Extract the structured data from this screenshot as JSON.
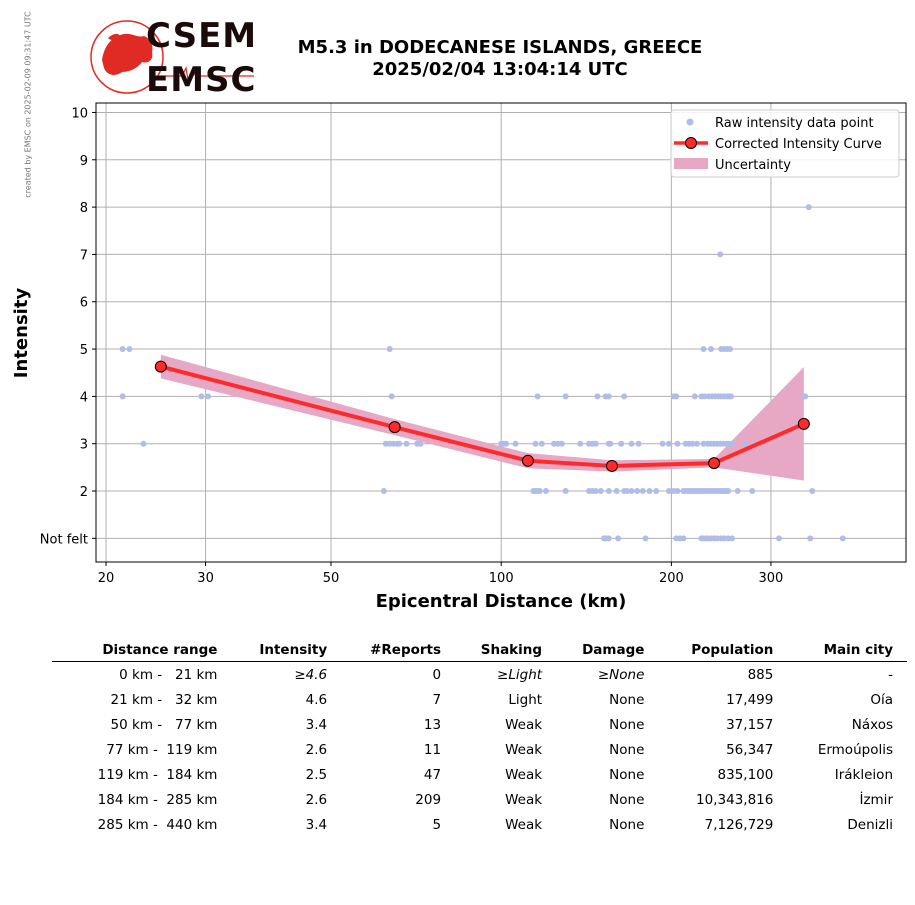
{
  "side_note": "created by EMSC on 2025-02-09 09:31:47 UTC",
  "logo": {
    "line1": "CSEM",
    "line2": "EMSC"
  },
  "title": {
    "line1": "M5.3 in DODECANESE ISLANDS, GREECE",
    "line2": "2025/02/04 13:04:14 UTC"
  },
  "colors": {
    "raw_points": "#b0bde8",
    "curve": "#ff2a2a",
    "curve_marker_edge": "#000000",
    "uncertainty": "#e6a8c4",
    "logo_red": "#e02a24"
  },
  "chart_data": {
    "type": "scatter",
    "title": "",
    "xlabel": "Epicentral Distance (km)",
    "ylabel": "Intensity",
    "x_scale": "log",
    "xlim": [
      19.2,
      520
    ],
    "ylim": [
      0.5,
      10.2
    ],
    "x_ticks": [
      20,
      30,
      50,
      100,
      200,
      300
    ],
    "y_ticks": [
      {
        "value": 1,
        "label": "Not felt"
      },
      {
        "value": 2,
        "label": "2"
      },
      {
        "value": 3,
        "label": "3"
      },
      {
        "value": 4,
        "label": "4"
      },
      {
        "value": 5,
        "label": "5"
      },
      {
        "value": 6,
        "label": "6"
      },
      {
        "value": 7,
        "label": "7"
      },
      {
        "value": 8,
        "label": "8"
      },
      {
        "value": 9,
        "label": "9"
      },
      {
        "value": 10,
        "label": "10"
      }
    ],
    "grid": true,
    "legend": {
      "position": "top-right",
      "entries": [
        "Raw intensity data point",
        "Corrected Intensity Curve",
        "Uncertainty"
      ]
    },
    "series": [
      {
        "name": "Raw intensity data point",
        "type": "scatter",
        "points": [
          [
            21.4,
            5
          ],
          [
            22,
            5
          ],
          [
            21.4,
            4
          ],
          [
            23.3,
            3
          ],
          [
            29.5,
            4
          ],
          [
            30.3,
            4
          ],
          [
            62,
            2
          ],
          [
            63.5,
            5
          ],
          [
            64,
            4
          ],
          [
            62.5,
            3
          ],
          [
            63.5,
            3
          ],
          [
            64.5,
            3
          ],
          [
            65.5,
            3
          ],
          [
            66,
            3
          ],
          [
            68,
            3
          ],
          [
            71,
            3
          ],
          [
            72,
            3
          ],
          [
            100,
            3
          ],
          [
            101,
            3
          ],
          [
            102,
            3
          ],
          [
            106,
            3
          ],
          [
            115,
            3
          ],
          [
            118,
            3
          ],
          [
            124,
            3
          ],
          [
            126,
            3
          ],
          [
            128,
            3
          ],
          [
            138,
            3
          ],
          [
            143,
            3
          ],
          [
            145,
            3
          ],
          [
            147,
            3
          ],
          [
            155,
            3
          ],
          [
            156,
            3
          ],
          [
            163,
            3
          ],
          [
            170,
            3
          ],
          [
            175,
            3
          ],
          [
            193,
            3
          ],
          [
            198,
            3
          ],
          [
            205,
            3
          ],
          [
            212,
            3
          ],
          [
            215,
            3
          ],
          [
            218,
            3
          ],
          [
            222,
            3
          ],
          [
            228,
            3
          ],
          [
            232,
            3
          ],
          [
            235,
            3
          ],
          [
            238,
            3
          ],
          [
            241,
            3
          ],
          [
            244,
            3
          ],
          [
            247,
            3
          ],
          [
            250,
            3
          ],
          [
            253,
            3
          ],
          [
            256,
            3
          ],
          [
            270,
            3
          ],
          [
            280,
            3
          ],
          [
            114,
            2
          ],
          [
            115,
            2
          ],
          [
            116,
            2
          ],
          [
            117,
            2
          ],
          [
            120,
            2
          ],
          [
            130,
            2
          ],
          [
            143,
            2
          ],
          [
            145,
            2
          ],
          [
            147,
            2
          ],
          [
            150,
            2
          ],
          [
            155,
            2
          ],
          [
            160,
            2
          ],
          [
            165,
            2
          ],
          [
            167,
            2
          ],
          [
            170,
            2
          ],
          [
            174,
            2
          ],
          [
            178,
            2
          ],
          [
            183,
            2
          ],
          [
            188,
            2
          ],
          [
            198,
            2
          ],
          [
            202,
            2
          ],
          [
            205,
            2
          ],
          [
            210,
            2
          ],
          [
            212,
            2
          ],
          [
            214,
            2
          ],
          [
            216,
            2
          ],
          [
            218,
            2
          ],
          [
            220,
            2
          ],
          [
            222,
            2
          ],
          [
            224,
            2
          ],
          [
            226,
            2
          ],
          [
            228,
            2
          ],
          [
            230,
            2
          ],
          [
            232,
            2
          ],
          [
            234,
            2
          ],
          [
            236,
            2
          ],
          [
            238,
            2
          ],
          [
            240,
            2
          ],
          [
            242,
            2
          ],
          [
            244,
            2
          ],
          [
            246,
            2
          ],
          [
            248,
            2
          ],
          [
            250,
            2
          ],
          [
            252,
            2
          ],
          [
            262,
            2
          ],
          [
            278,
            2
          ],
          [
            355,
            2
          ],
          [
            116,
            4
          ],
          [
            130,
            4
          ],
          [
            148,
            4
          ],
          [
            153,
            4
          ],
          [
            155,
            4
          ],
          [
            165,
            4
          ],
          [
            202,
            4
          ],
          [
            204,
            4
          ],
          [
            220,
            4
          ],
          [
            226,
            4
          ],
          [
            229,
            4
          ],
          [
            233,
            4
          ],
          [
            236,
            4
          ],
          [
            239,
            4
          ],
          [
            242,
            4
          ],
          [
            245,
            4
          ],
          [
            248,
            4
          ],
          [
            251,
            4
          ],
          [
            253,
            4
          ],
          [
            255,
            4
          ],
          [
            343,
            4
          ],
          [
            345,
            4
          ],
          [
            228,
            5
          ],
          [
            235,
            5
          ],
          [
            245,
            5
          ],
          [
            248,
            5
          ],
          [
            251,
            5
          ],
          [
            254,
            5
          ],
          [
            244,
            7
          ],
          [
            350,
            8
          ],
          [
            152,
            1
          ],
          [
            153,
            1
          ],
          [
            155,
            1
          ],
          [
            161,
            1
          ],
          [
            180,
            1
          ],
          [
            204,
            1
          ],
          [
            207,
            1
          ],
          [
            210,
            1
          ],
          [
            226,
            1
          ],
          [
            228,
            1
          ],
          [
            230,
            1
          ],
          [
            232,
            1
          ],
          [
            235,
            1
          ],
          [
            238,
            1
          ],
          [
            241,
            1
          ],
          [
            245,
            1
          ],
          [
            248,
            1
          ],
          [
            252,
            1
          ],
          [
            256,
            1
          ],
          [
            310,
            1
          ],
          [
            352,
            1
          ],
          [
            402,
            1
          ]
        ]
      },
      {
        "name": "Corrected Intensity Curve",
        "type": "line",
        "points": [
          [
            25,
            4.63
          ],
          [
            64.8,
            3.35
          ],
          [
            111.5,
            2.64
          ],
          [
            157,
            2.53
          ],
          [
            238,
            2.59
          ],
          [
            343,
            3.42
          ]
        ]
      },
      {
        "name": "Uncertainty",
        "type": "area",
        "upper": [
          [
            25,
            4.88
          ],
          [
            64.8,
            3.52
          ],
          [
            111.5,
            2.8
          ],
          [
            157,
            2.65
          ],
          [
            238,
            2.68
          ],
          [
            343,
            4.62
          ]
        ],
        "lower": [
          [
            25,
            4.38
          ],
          [
            64.8,
            3.18
          ],
          [
            111.5,
            2.48
          ],
          [
            157,
            2.41
          ],
          [
            238,
            2.5
          ],
          [
            343,
            2.22
          ]
        ]
      }
    ]
  },
  "table": {
    "headers": [
      "Distance range",
      "Intensity",
      "#Reports",
      "Shaking",
      "Damage",
      "Population",
      "Main city"
    ],
    "rows": [
      {
        "range": "0 km -   21 km",
        "intensity": "≥4.6",
        "reports": "0",
        "shaking": "≥Light",
        "damage": "≥None",
        "population": "885",
        "city": "-"
      },
      {
        "range": "21 km -   32 km",
        "intensity": "4.6",
        "reports": "7",
        "shaking": "Light",
        "damage": "None",
        "population": "17,499",
        "city": "Oía"
      },
      {
        "range": "50 km -   77 km",
        "intensity": "3.4",
        "reports": "13",
        "shaking": "Weak",
        "damage": "None",
        "population": "37,157",
        "city": "Náxos"
      },
      {
        "range": "77 km -  119 km",
        "intensity": "2.6",
        "reports": "11",
        "shaking": "Weak",
        "damage": "None",
        "population": "56,347",
        "city": "Ermoúpolis"
      },
      {
        "range": "119 km -  184 km",
        "intensity": "2.5",
        "reports": "47",
        "shaking": "Weak",
        "damage": "None",
        "population": "835,100",
        "city": "Irákleion"
      },
      {
        "range": "184 km -  285 km",
        "intensity": "2.6",
        "reports": "209",
        "shaking": "Weak",
        "damage": "None",
        "population": "10,343,816",
        "city": "İzmir"
      },
      {
        "range": "285 km -  440 km",
        "intensity": "3.4",
        "reports": "5",
        "shaking": "Weak",
        "damage": "None",
        "population": "7,126,729",
        "city": "Denizli"
      }
    ]
  }
}
